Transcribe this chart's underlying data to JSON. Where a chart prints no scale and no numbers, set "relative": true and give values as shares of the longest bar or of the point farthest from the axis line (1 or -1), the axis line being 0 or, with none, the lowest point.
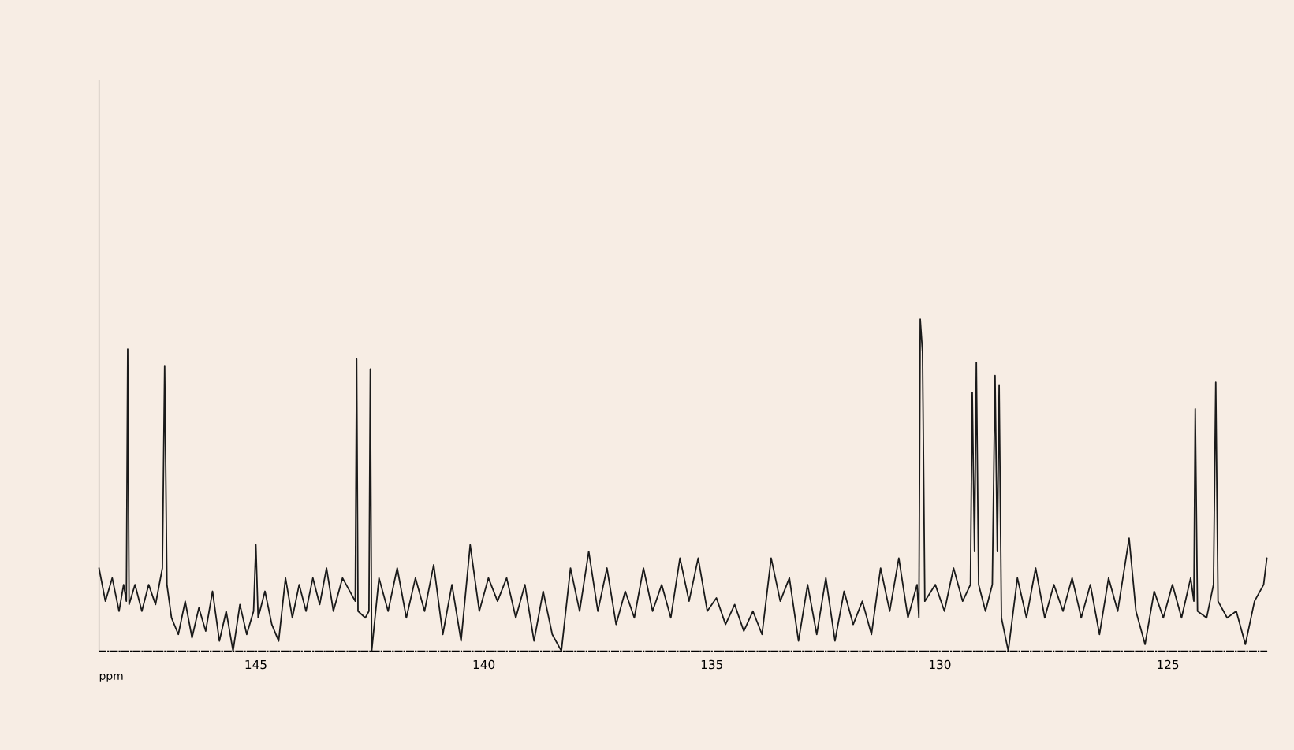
{
  "chart_data": {
    "type": "line",
    "relative": true,
    "xlabel": "ppm",
    "color": "#1a1a1a",
    "xlim": [
      148.44,
      122.83
    ],
    "xticks": [
      145,
      140,
      135,
      130,
      125
    ],
    "grid": false,
    "legend": false,
    "x": [
      148.44,
      148.3,
      148.15,
      148.0,
      147.9,
      147.84,
      147.81,
      147.78,
      147.65,
      147.5,
      147.35,
      147.2,
      147.05,
      147.0,
      146.95,
      146.85,
      146.7,
      146.55,
      146.4,
      146.25,
      146.1,
      145.95,
      145.8,
      145.65,
      145.5,
      145.35,
      145.2,
      145.05,
      145.0,
      144.95,
      144.8,
      144.65,
      144.5,
      144.35,
      144.2,
      144.05,
      143.9,
      143.75,
      143.6,
      143.45,
      143.3,
      143.1,
      142.82,
      142.79,
      142.76,
      142.6,
      142.52,
      142.49,
      142.46,
      142.3,
      142.1,
      141.9,
      141.7,
      141.5,
      141.3,
      141.1,
      140.9,
      140.7,
      140.5,
      140.3,
      140.1,
      139.9,
      139.7,
      139.5,
      139.3,
      139.1,
      138.9,
      138.7,
      138.5,
      138.3,
      138.1,
      137.9,
      137.7,
      137.5,
      137.3,
      137.1,
      136.9,
      136.7,
      136.5,
      136.3,
      136.1,
      135.9,
      135.7,
      135.5,
      135.3,
      135.1,
      134.9,
      134.7,
      134.5,
      134.3,
      134.1,
      133.9,
      133.7,
      133.5,
      133.3,
      133.1,
      132.9,
      132.7,
      132.5,
      132.3,
      132.1,
      131.9,
      131.7,
      131.5,
      131.3,
      131.1,
      130.9,
      130.7,
      130.5,
      130.46,
      130.43,
      130.38,
      130.33,
      130.1,
      129.9,
      129.7,
      129.5,
      129.33,
      129.29,
      129.24,
      129.2,
      129.15,
      129.0,
      128.85,
      128.79,
      128.74,
      128.7,
      128.65,
      128.5,
      128.3,
      128.1,
      127.9,
      127.7,
      127.5,
      127.3,
      127.1,
      126.9,
      126.7,
      126.5,
      126.3,
      126.1,
      125.85,
      125.7,
      125.5,
      125.3,
      125.1,
      124.9,
      124.7,
      124.5,
      124.43,
      124.4,
      124.35,
      124.15,
      124.0,
      123.95,
      123.9,
      123.7,
      123.5,
      123.3,
      123.1,
      122.9,
      122.83
    ],
    "values": [
      0.25,
      0.15,
      0.22,
      0.12,
      0.2,
      0.15,
      0.91,
      0.14,
      0.2,
      0.12,
      0.2,
      0.14,
      0.25,
      0.86,
      0.2,
      0.1,
      0.05,
      0.15,
      0.04,
      0.13,
      0.06,
      0.18,
      0.03,
      0.12,
      0.0,
      0.14,
      0.05,
      0.12,
      0.32,
      0.1,
      0.18,
      0.08,
      0.03,
      0.22,
      0.1,
      0.2,
      0.12,
      0.22,
      0.14,
      0.25,
      0.12,
      0.22,
      0.15,
      0.88,
      0.12,
      0.1,
      0.12,
      0.85,
      0.0,
      0.22,
      0.12,
      0.25,
      0.1,
      0.22,
      0.12,
      0.26,
      0.05,
      0.2,
      0.03,
      0.32,
      0.12,
      0.22,
      0.15,
      0.22,
      0.1,
      0.2,
      0.03,
      0.18,
      0.05,
      0.0,
      0.25,
      0.12,
      0.3,
      0.12,
      0.25,
      0.08,
      0.18,
      0.1,
      0.25,
      0.12,
      0.2,
      0.1,
      0.28,
      0.15,
      0.28,
      0.12,
      0.16,
      0.08,
      0.14,
      0.06,
      0.12,
      0.05,
      0.28,
      0.15,
      0.22,
      0.03,
      0.2,
      0.05,
      0.22,
      0.03,
      0.18,
      0.08,
      0.15,
      0.05,
      0.25,
      0.12,
      0.28,
      0.1,
      0.2,
      0.1,
      1.0,
      0.9,
      0.15,
      0.2,
      0.12,
      0.25,
      0.15,
      0.2,
      0.78,
      0.3,
      0.87,
      0.2,
      0.12,
      0.2,
      0.83,
      0.3,
      0.8,
      0.1,
      0.0,
      0.22,
      0.1,
      0.25,
      0.1,
      0.2,
      0.12,
      0.22,
      0.1,
      0.2,
      0.05,
      0.22,
      0.12,
      0.34,
      0.12,
      0.02,
      0.18,
      0.1,
      0.2,
      0.1,
      0.22,
      0.15,
      0.73,
      0.12,
      0.1,
      0.2,
      0.81,
      0.15,
      0.1,
      0.12,
      0.02,
      0.15,
      0.2,
      0.28
    ]
  }
}
